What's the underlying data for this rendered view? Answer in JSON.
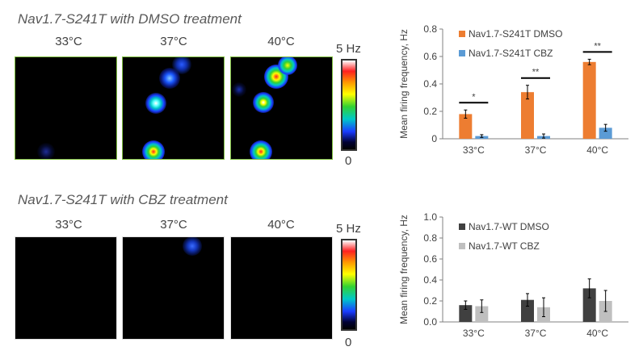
{
  "top": {
    "title": "Nav1.7-S241T with DMSO treatment",
    "temps": [
      "33°C",
      "37°C",
      "40°C"
    ],
    "scale_max": "5 Hz",
    "scale_min": "0"
  },
  "bottom": {
    "title": "Nav1.7-S241T with CBZ treatment",
    "temps": [
      "33°C",
      "37°C",
      "40°C"
    ],
    "scale_max": "5 Hz",
    "scale_min": "0"
  },
  "chart_data": [
    {
      "type": "bar",
      "categories": [
        "33°C",
        "37°C",
        "40°C"
      ],
      "ylabel": "Mean firing frequency, Hz",
      "ylim": [
        0,
        0.8
      ],
      "yticks": [
        "0",
        "0.2",
        "0.4",
        "0.6",
        "0.8"
      ],
      "legend_position": "top-left",
      "series": [
        {
          "name": "Nav1.7-S241T DMSO",
          "color": "#ed7d31",
          "values": [
            0.18,
            0.34,
            0.56
          ],
          "errors": [
            0.03,
            0.05,
            0.02
          ]
        },
        {
          "name": "Nav1.7-S241T CBZ",
          "color": "#5b9bd5",
          "values": [
            0.02,
            0.02,
            0.08
          ],
          "errors": [
            0.01,
            0.015,
            0.025
          ]
        }
      ],
      "significance": [
        "*",
        "**",
        "**"
      ]
    },
    {
      "type": "bar",
      "categories": [
        "33°C",
        "37°C",
        "40°C"
      ],
      "ylabel": "Mean firing frequency, Hz",
      "ylim": [
        0,
        1.0
      ],
      "yticks": [
        "0.0",
        "0.2",
        "0.4",
        "0.6",
        "0.8",
        "1.0"
      ],
      "legend_position": "top-left",
      "series": [
        {
          "name": "Nav1.7-WT DMSO",
          "color": "#404040",
          "values": [
            0.16,
            0.21,
            0.32
          ],
          "errors": [
            0.04,
            0.06,
            0.09
          ]
        },
        {
          "name": "Nav1.7-WT CBZ",
          "color": "#bfbfbf",
          "values": [
            0.15,
            0.14,
            0.2
          ],
          "errors": [
            0.06,
            0.09,
            0.1
          ]
        }
      ],
      "significance": []
    }
  ]
}
